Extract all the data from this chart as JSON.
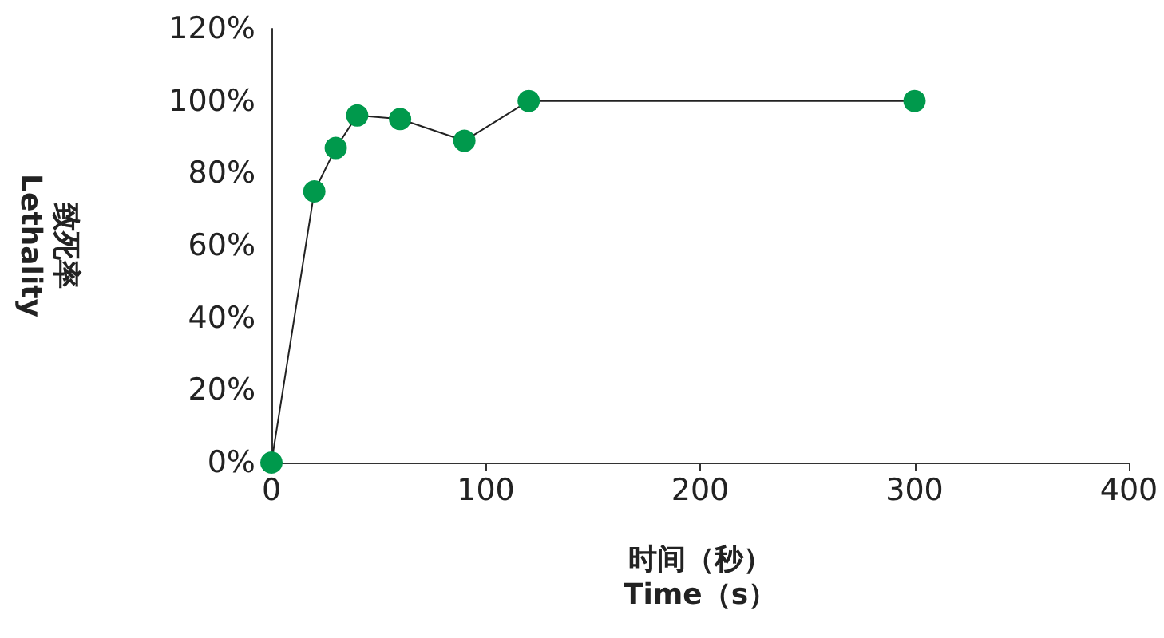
{
  "chart_data": {
    "type": "line",
    "xlabel": "时间（秒）\nTime（s）",
    "ylabel": "致死率\nLethality",
    "x": [
      0,
      20,
      30,
      40,
      60,
      90,
      120,
      300
    ],
    "series": [
      {
        "color": "#00994c",
        "values": [
          0,
          75,
          87,
          96,
          95,
          89,
          100,
          100
        ]
      }
    ],
    "xlim": [
      0,
      400
    ],
    "xticks": [
      0,
      100,
      200,
      300,
      400
    ],
    "ylim": [
      0,
      120
    ],
    "yticks": [
      {
        "value": 0,
        "label": "0%"
      },
      {
        "value": 20,
        "label": "20%"
      },
      {
        "value": 40,
        "label": "40%"
      },
      {
        "value": 60,
        "label": "60%"
      },
      {
        "value": 80,
        "label": "80%"
      },
      {
        "value": 100,
        "label": "100%"
      },
      {
        "value": 120,
        "label": "120%"
      }
    ],
    "grid": false,
    "marker": "circle",
    "line_style": "solid"
  }
}
